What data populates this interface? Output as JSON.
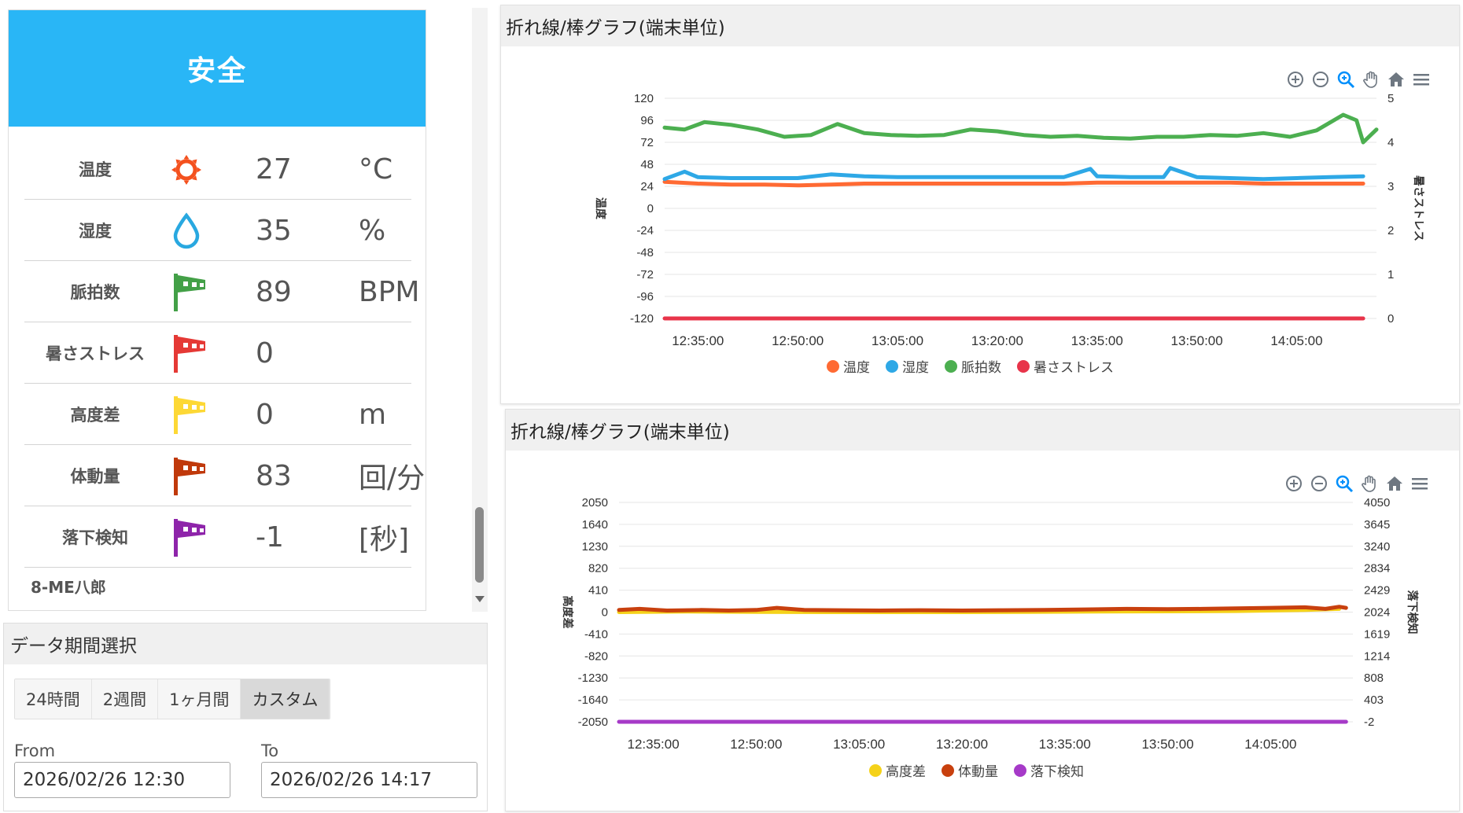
{
  "status": {
    "header": "安全",
    "header_color": "#29b6f6",
    "device_name": "8-ME八郎",
    "metrics": [
      {
        "label": "温度",
        "value": "27",
        "unit": "°C",
        "icon": "sun-icon",
        "color": "#f4511e"
      },
      {
        "label": "湿度",
        "value": "35",
        "unit": "%",
        "icon": "water-drop-icon",
        "color": "#29a8e0"
      },
      {
        "label": "脈拍数",
        "value": "89",
        "unit": "BPM",
        "icon": "green-flag-icon",
        "color": "#43a047"
      },
      {
        "label": "暑さストレス",
        "value": "0",
        "unit": "",
        "icon": "red-flag-icon",
        "color": "#e53935"
      },
      {
        "label": "高度差",
        "value": "0",
        "unit": "m",
        "icon": "yellow-flag-icon",
        "color": "#fdd835"
      },
      {
        "label": "体動量",
        "value": "83",
        "unit": "回/分",
        "icon": "brown-flag-icon",
        "color": "#c0390b"
      },
      {
        "label": "落下検知",
        "value": "-1",
        "unit": "[秒]",
        "icon": "purple-flag-icon",
        "color": "#8e24aa"
      }
    ]
  },
  "period": {
    "title": "データ期間選択",
    "buttons": [
      "24時間",
      "2週間",
      "1ヶ月間",
      "カスタム"
    ],
    "active": "カスタム",
    "from_label": "From",
    "to_label": "To",
    "from_value": "2026/02/26 12:30",
    "to_value": "2026/02/26 14:17"
  },
  "chart_data": [
    {
      "type": "line",
      "title": "折れ線/棒グラフ(端末単位)",
      "ylabel": "温度",
      "y2label": "暑さストレス",
      "ylim": [
        -120,
        120
      ],
      "yticks": [
        120,
        96,
        72,
        48,
        24,
        0,
        -24,
        -48,
        -72,
        -96,
        -120
      ],
      "y2lim": [
        0,
        5
      ],
      "y2ticks": [
        5,
        4,
        3,
        2,
        1,
        0
      ],
      "xlim": [
        "12:30:00",
        "14:17:00"
      ],
      "xticks": [
        "12:35:00",
        "12:50:00",
        "13:05:00",
        "13:20:00",
        "13:35:00",
        "13:50:00",
        "14:05:00"
      ],
      "grid": true,
      "legend": "bottom",
      "series": [
        {
          "name": "温度",
          "color": "#ff6a33",
          "axis": "left",
          "values": [
            [
              "12:30:00",
              29
            ],
            [
              "12:35:00",
              27
            ],
            [
              "12:40:00",
              26
            ],
            [
              "12:45:00",
              26
            ],
            [
              "12:50:00",
              25
            ],
            [
              "12:55:00",
              26
            ],
            [
              "13:00:00",
              27
            ],
            [
              "13:05:00",
              27
            ],
            [
              "13:10:00",
              27
            ],
            [
              "13:15:00",
              27
            ],
            [
              "13:20:00",
              27
            ],
            [
              "13:25:00",
              27
            ],
            [
              "13:30:00",
              27
            ],
            [
              "13:35:00",
              28
            ],
            [
              "13:40:00",
              28
            ],
            [
              "13:45:00",
              28
            ],
            [
              "13:50:00",
              28
            ],
            [
              "13:55:00",
              28
            ],
            [
              "14:00:00",
              27
            ],
            [
              "14:05:00",
              27
            ],
            [
              "14:10:00",
              27
            ],
            [
              "14:15:00",
              27
            ]
          ]
        },
        {
          "name": "湿度",
          "color": "#2ea8e6",
          "axis": "left",
          "values": [
            [
              "12:30:00",
              32
            ],
            [
              "12:33:00",
              40
            ],
            [
              "12:35:00",
              34
            ],
            [
              "12:40:00",
              33
            ],
            [
              "12:45:00",
              33
            ],
            [
              "12:50:00",
              33
            ],
            [
              "12:55:00",
              37
            ],
            [
              "13:00:00",
              35
            ],
            [
              "13:05:00",
              34
            ],
            [
              "13:10:00",
              34
            ],
            [
              "13:15:00",
              34
            ],
            [
              "13:20:00",
              34
            ],
            [
              "13:25:00",
              34
            ],
            [
              "13:30:00",
              34
            ],
            [
              "13:34:00",
              43
            ],
            [
              "13:35:00",
              35
            ],
            [
              "13:40:00",
              34
            ],
            [
              "13:45:00",
              34
            ],
            [
              "13:46:00",
              44
            ],
            [
              "13:50:00",
              34
            ],
            [
              "13:55:00",
              33
            ],
            [
              "14:00:00",
              32
            ],
            [
              "14:05:00",
              33
            ],
            [
              "14:10:00",
              34
            ],
            [
              "14:15:00",
              35
            ]
          ]
        },
        {
          "name": "脈拍数",
          "color": "#4caf50",
          "axis": "left",
          "values": [
            [
              "12:30:00",
              88
            ],
            [
              "12:33:00",
              86
            ],
            [
              "12:36:00",
              94
            ],
            [
              "12:40:00",
              91
            ],
            [
              "12:44:00",
              86
            ],
            [
              "12:48:00",
              78
            ],
            [
              "12:52:00",
              80
            ],
            [
              "12:56:00",
              92
            ],
            [
              "13:00:00",
              82
            ],
            [
              "13:04:00",
              80
            ],
            [
              "13:08:00",
              79
            ],
            [
              "13:12:00",
              80
            ],
            [
              "13:16:00",
              86
            ],
            [
              "13:20:00",
              84
            ],
            [
              "13:24:00",
              80
            ],
            [
              "13:28:00",
              78
            ],
            [
              "13:32:00",
              79
            ],
            [
              "13:36:00",
              77
            ],
            [
              "13:40:00",
              76
            ],
            [
              "13:44:00",
              78
            ],
            [
              "13:48:00",
              78
            ],
            [
              "13:52:00",
              80
            ],
            [
              "13:56:00",
              79
            ],
            [
              "14:00:00",
              82
            ],
            [
              "14:04:00",
              78
            ],
            [
              "14:08:00",
              85
            ],
            [
              "14:12:00",
              102
            ],
            [
              "14:14:00",
              96
            ],
            [
              "14:15:00",
              72
            ],
            [
              "14:17:00",
              86
            ]
          ]
        },
        {
          "name": "暑さストレス",
          "color": "#e8344a",
          "axis": "right",
          "values": [
            [
              "12:30:00",
              0
            ],
            [
              "13:00:00",
              0
            ],
            [
              "13:30:00",
              0
            ],
            [
              "14:00:00",
              0
            ],
            [
              "14:15:00",
              0
            ]
          ]
        }
      ]
    },
    {
      "type": "line",
      "title": "折れ線/棒グラフ(端末単位)",
      "ylabel": "高度差",
      "y2label": "落下検知",
      "ylim": [
        -2050,
        2050
      ],
      "yticks": [
        2050,
        1640,
        1230,
        820,
        410,
        0,
        -410,
        -820,
        -1230,
        -1640,
        -2050
      ],
      "y2lim": [
        -2,
        4050
      ],
      "y2ticks": [
        4050,
        3645,
        3240,
        2834,
        2429,
        2024,
        1619,
        1214,
        808,
        403,
        -2
      ],
      "xlim": [
        "12:30:00",
        "14:17:00"
      ],
      "xticks": [
        "12:35:00",
        "12:50:00",
        "13:05:00",
        "13:20:00",
        "13:35:00",
        "13:50:00",
        "14:05:00"
      ],
      "grid": true,
      "legend": "bottom",
      "series": [
        {
          "name": "高度差",
          "color": "#f5d21a",
          "axis": "left",
          "values": [
            [
              "12:30:00",
              0
            ],
            [
              "12:40:00",
              10
            ],
            [
              "12:50:00",
              5
            ],
            [
              "13:00:00",
              0
            ],
            [
              "13:10:00",
              0
            ],
            [
              "13:20:00",
              0
            ],
            [
              "13:30:00",
              5
            ],
            [
              "13:40:00",
              10
            ],
            [
              "13:50:00",
              15
            ],
            [
              "14:00:00",
              20
            ],
            [
              "14:10:00",
              40
            ],
            [
              "14:15:00",
              60
            ]
          ]
        },
        {
          "name": "体動量",
          "color": "#c8400e",
          "axis": "left",
          "values": [
            [
              "12:30:00",
              40
            ],
            [
              "12:33:00",
              60
            ],
            [
              "12:37:00",
              30
            ],
            [
              "12:42:00",
              40
            ],
            [
              "12:46:00",
              30
            ],
            [
              "12:50:00",
              40
            ],
            [
              "12:53:00",
              80
            ],
            [
              "12:57:00",
              40
            ],
            [
              "13:02:00",
              35
            ],
            [
              "13:08:00",
              30
            ],
            [
              "13:14:00",
              35
            ],
            [
              "13:20:00",
              30
            ],
            [
              "13:26:00",
              35
            ],
            [
              "13:32:00",
              40
            ],
            [
              "13:38:00",
              50
            ],
            [
              "13:44:00",
              60
            ],
            [
              "13:50:00",
              55
            ],
            [
              "13:55:00",
              60
            ],
            [
              "14:00:00",
              70
            ],
            [
              "14:05:00",
              80
            ],
            [
              "14:10:00",
              90
            ],
            [
              "14:13:00",
              60
            ],
            [
              "14:15:00",
              100
            ],
            [
              "14:16:00",
              80
            ]
          ]
        },
        {
          "name": "落下検知",
          "color": "#a63ac8",
          "axis": "right",
          "values": [
            [
              "12:30:00",
              -2
            ],
            [
              "13:00:00",
              -2
            ],
            [
              "13:30:00",
              -2
            ],
            [
              "14:00:00",
              -2
            ],
            [
              "14:16:00",
              -2
            ]
          ]
        }
      ]
    }
  ]
}
